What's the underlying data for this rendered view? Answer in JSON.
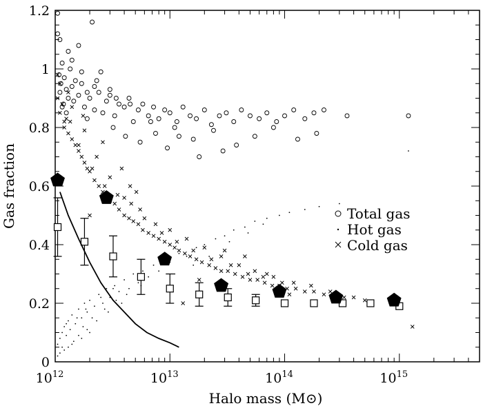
{
  "chart_data": {
    "type": "scatter",
    "xlabel": "Halo mass (M⊙)",
    "ylabel": "Gas fraction",
    "xscale": "log",
    "xlim": [
      1000000000000.0,
      5000000000000000.0
    ],
    "ylim": [
      0,
      1.2
    ],
    "x_ticks": [
      {
        "value": 1000000000000.0,
        "base": "10",
        "exp": "12"
      },
      {
        "value": 10000000000000.0,
        "base": "10",
        "exp": "13"
      },
      {
        "value": 100000000000000.0,
        "base": "10",
        "exp": "14"
      },
      {
        "value": 1000000000000000.0,
        "base": "10",
        "exp": "15"
      }
    ],
    "y_ticks": [
      {
        "value": 0,
        "label": "0"
      },
      {
        "value": 0.2,
        "label": "0.2"
      },
      {
        "value": 0.4,
        "label": "0.4"
      },
      {
        "value": 0.6,
        "label": "0.6"
      },
      {
        "value": 0.8,
        "label": "0.8"
      },
      {
        "value": 1.0,
        "label": "1"
      },
      {
        "value": 1.2,
        "label": "1.2"
      }
    ],
    "legend": {
      "placement": "right-middle",
      "entries": [
        {
          "marker": "circle",
          "label": "Total gas"
        },
        {
          "marker": "dot",
          "label": "Hot gas"
        },
        {
          "marker": "cross",
          "label": "Cold gas"
        }
      ]
    },
    "series": [
      {
        "name": "Total gas",
        "marker": "circle",
        "x": [
          1050000000000.0,
          1080000000000.0,
          1100000000000.0,
          1120000000000.0,
          1150000000000.0,
          1180000000000.0,
          1200000000000.0,
          1250000000000.0,
          1300000000000.0,
          1350000000000.0,
          1400000000000.0,
          1450000000000.0,
          1500000000000.0,
          1600000000000.0,
          1700000000000.0,
          1800000000000.0,
          1900000000000.0,
          2000000000000.0,
          2200000000000.0,
          2400000000000.0,
          2600000000000.0,
          2800000000000.0,
          3000000000000.0,
          3300000000000.0,
          3600000000000.0,
          4000000000000.0,
          4400000000000.0,
          4800000000000.0,
          5300000000000.0,
          5800000000000.0,
          6500000000000.0,
          7200000000000.0,
          8000000000000.0,
          9000000000000.0,
          10000000000000.0,
          11500000000000.0,
          13000000000000.0,
          15000000000000.0,
          17000000000000.0,
          20000000000000.0,
          23000000000000.0,
          27000000000000.0,
          31000000000000.0,
          36000000000000.0,
          42000000000000.0,
          50000000000000.0,
          60000000000000.0,
          70000000000000.0,
          85000000000000.0,
          100000000000000.0,
          120000000000000.0,
          150000000000000.0,
          180000000000000.0,
          220000000000000.0,
          350000000000000.0,
          1200000000000000.0,
          1100000000000.0,
          1300000000000.0,
          1600000000000.0,
          2100000000000.0,
          2500000000000.0,
          3200000000000.0,
          4100000000000.0,
          5500000000000.0,
          7500000000000.0,
          11000000000000.0,
          16000000000000.0,
          24000000000000.0,
          38000000000000.0,
          55000000000000.0,
          80000000000000.0,
          130000000000000.0,
          190000000000000.0,
          29000000000000.0,
          1400000000000.0,
          1700000000000.0,
          2300000000000.0,
          3400000000000.0,
          6800000000000.0,
          12000000000000.0,
          1250000000000.0,
          1900000000000.0,
          1050000000000.0,
          1150000000000.0,
          2200000000000.0,
          3000000000000.0,
          4500000000000.0,
          9500000000000.0,
          18000000000000.0
        ],
        "y": [
          1.19,
          0.98,
          0.92,
          0.95,
          1.02,
          0.88,
          0.97,
          0.93,
          0.9,
          1.0,
          0.94,
          0.89,
          0.96,
          0.91,
          0.95,
          0.87,
          0.92,
          0.9,
          0.86,
          0.92,
          0.85,
          0.89,
          0.93,
          0.84,
          0.88,
          0.87,
          0.9,
          0.82,
          0.86,
          0.88,
          0.84,
          0.87,
          0.83,
          0.86,
          0.85,
          0.82,
          0.87,
          0.84,
          0.83,
          0.86,
          0.81,
          0.84,
          0.85,
          0.82,
          0.86,
          0.84,
          0.83,
          0.85,
          0.82,
          0.84,
          0.86,
          0.83,
          0.85,
          0.86,
          0.84,
          0.84,
          1.1,
          1.06,
          1.08,
          1.16,
          0.99,
          0.8,
          0.77,
          0.75,
          0.78,
          0.8,
          0.76,
          0.79,
          0.74,
          0.77,
          0.8,
          0.76,
          0.78,
          0.72,
          1.03,
          0.99,
          0.96,
          0.9,
          0.82,
          0.77,
          0.85,
          0.83,
          1.12,
          0.87,
          0.94,
          0.91,
          0.88,
          0.73,
          0.7
        ],
        "color": "#000000"
      },
      {
        "name": "Hot gas",
        "marker": "dot",
        "x": [
          1050000000000.0,
          1100000000000.0,
          1150000000000.0,
          1200000000000.0,
          1250000000000.0,
          1300000000000.0,
          1350000000000.0,
          1400000000000.0,
          1500000000000.0,
          1600000000000.0,
          1700000000000.0,
          1800000000000.0,
          1900000000000.0,
          2000000000000.0,
          2200000000000.0,
          2400000000000.0,
          2600000000000.0,
          2800000000000.0,
          3000000000000.0,
          3300000000000.0,
          3600000000000.0,
          4000000000000.0,
          4400000000000.0,
          4800000000000.0,
          5300000000000.0,
          5800000000000.0,
          6500000000000.0,
          7200000000000.0,
          8000000000000.0,
          9000000000000.0,
          10000000000000.0,
          12000000000000.0,
          14000000000000.0,
          17000000000000.0,
          20000000000000.0,
          25000000000000.0,
          30000000000000.0,
          36000000000000.0,
          45000000000000.0,
          55000000000000.0,
          70000000000000.0,
          90000000000000.0,
          110000000000000.0,
          150000000000000.0,
          200000000000000.0,
          300000000000000.0,
          1150000000000.0,
          1450000000000.0,
          1750000000000.0,
          2100000000000.0,
          2700000000000.0,
          3400000000000.0,
          4200000000000.0,
          5600000000000.0,
          1100000000000.0,
          1300000000000.0,
          1600000000000.0,
          1900000000000.0,
          2300000000000.0,
          2900000000000.0,
          3800000000000.0,
          1050000000000.0,
          1200000000000.0,
          1400000000000.0,
          1700000000000.0,
          2000000000000.0,
          11000000000000.0,
          16000000000000.0,
          22000000000000.0,
          33000000000000.0,
          48000000000000.0,
          65000000000000.0,
          1200000000000000.0,
          1250000000000.0,
          1550000000000.0,
          1850000000000.0,
          2500000000000.0,
          3200000000000.0
        ],
        "y": [
          0.06,
          0.08,
          0.1,
          0.12,
          0.09,
          0.14,
          0.11,
          0.16,
          0.13,
          0.18,
          0.15,
          0.2,
          0.17,
          0.21,
          0.19,
          0.23,
          0.2,
          0.25,
          0.22,
          0.26,
          0.24,
          0.28,
          0.25,
          0.3,
          0.27,
          0.31,
          0.29,
          0.33,
          0.31,
          0.35,
          0.34,
          0.37,
          0.36,
          0.39,
          0.4,
          0.42,
          0.43,
          0.45,
          0.46,
          0.48,
          0.49,
          0.5,
          0.51,
          0.52,
          0.53,
          0.54,
          0.05,
          0.07,
          0.12,
          0.15,
          0.18,
          0.21,
          0.23,
          0.26,
          0.03,
          0.05,
          0.09,
          0.11,
          0.14,
          0.17,
          0.2,
          0.02,
          0.04,
          0.06,
          0.08,
          0.1,
          0.3,
          0.33,
          0.36,
          0.41,
          0.44,
          0.47,
          0.72,
          0.13,
          0.15,
          0.18,
          0.22,
          0.25
        ],
        "color": "#000000"
      },
      {
        "name": "Cold gas",
        "marker": "cross",
        "x": [
          1050000000000.0,
          1100000000000.0,
          1150000000000.0,
          1200000000000.0,
          1250000000000.0,
          1300000000000.0,
          1350000000000.0,
          1400000000000.0,
          1500000000000.0,
          1600000000000.0,
          1700000000000.0,
          1800000000000.0,
          1900000000000.0,
          2000000000000.0,
          2200000000000.0,
          2400000000000.0,
          2600000000000.0,
          2800000000000.0,
          3000000000000.0,
          3300000000000.0,
          3600000000000.0,
          4000000000000.0,
          4400000000000.0,
          4800000000000.0,
          5300000000000.0,
          5800000000000.0,
          6500000000000.0,
          7200000000000.0,
          8000000000000.0,
          9000000000000.0,
          10000000000000.0,
          11000000000000.0,
          12000000000000.0,
          13500000000000.0,
          15000000000000.0,
          17000000000000.0,
          19000000000000.0,
          22000000000000.0,
          25000000000000.0,
          28000000000000.0,
          32000000000000.0,
          37000000000000.0,
          43000000000000.0,
          50000000000000.0,
          58000000000000.0,
          67000000000000.0,
          78000000000000.0,
          90000000000000.0,
          105000000000000.0,
          125000000000000.0,
          150000000000000.0,
          180000000000000.0,
          220000000000000.0,
          270000000000000.0,
          330000000000000.0,
          400000000000000.0,
          500000000000000.0,
          1300000000000000.0,
          1100000000000.0,
          1400000000000.0,
          1800000000000.0,
          2300000000000.0,
          3000000000000.0,
          4000000000000.0,
          5500000000000.0,
          7500000000000.0,
          10000000000000.0,
          14000000000000.0,
          20000000000000.0,
          28000000000000.0,
          40000000000000.0,
          55000000000000.0,
          80000000000000.0,
          120000000000000.0,
          170000000000000.0,
          250000000000000.0,
          1200000000000.0,
          1600000000000.0,
          2100000000000.0,
          2700000000000.0,
          3500000000000.0,
          4600000000000.0,
          6000000000000.0,
          8500000000000.0,
          11500000000000.0,
          16000000000000.0,
          23000000000000.0,
          34000000000000.0,
          48000000000000.0,
          65000000000000.0,
          95000000000000.0,
          1050000000000.0,
          1300000000000.0,
          1750000000000.0,
          2600000000000.0,
          3800000000000.0,
          5100000000000.0,
          13000000000000.0,
          18000000000000.0,
          30000000000000.0,
          45000000000000.0,
          70000000000000.0,
          110000000000000.0,
          4500000000000.0,
          2000000000000.0
        ],
        "y": [
          0.9,
          0.85,
          0.88,
          0.8,
          0.83,
          0.78,
          0.82,
          0.76,
          0.74,
          0.72,
          0.7,
          0.68,
          0.66,
          0.65,
          0.62,
          0.6,
          0.58,
          0.57,
          0.55,
          0.54,
          0.52,
          0.5,
          0.49,
          0.48,
          0.47,
          0.45,
          0.44,
          0.43,
          0.42,
          0.41,
          0.4,
          0.39,
          0.38,
          0.37,
          0.36,
          0.35,
          0.34,
          0.33,
          0.32,
          0.31,
          0.31,
          0.3,
          0.29,
          0.28,
          0.28,
          0.27,
          0.26,
          0.26,
          0.25,
          0.25,
          0.24,
          0.24,
          0.23,
          0.23,
          0.22,
          0.22,
          0.21,
          0.12,
          0.95,
          0.87,
          0.79,
          0.7,
          0.63,
          0.56,
          0.52,
          0.47,
          0.45,
          0.42,
          0.39,
          0.36,
          0.33,
          0.31,
          0.29,
          0.27,
          0.26,
          0.24,
          0.82,
          0.74,
          0.66,
          0.6,
          0.57,
          0.54,
          0.49,
          0.44,
          0.41,
          0.38,
          0.35,
          0.33,
          0.3,
          0.29,
          0.27,
          0.98,
          0.92,
          0.84,
          0.75,
          0.66,
          0.58,
          0.2,
          0.28,
          0.38,
          0.36,
          0.3,
          0.23,
          0.6,
          0.5
        ],
        "color": "#000000"
      },
      {
        "name": "",
        "marker": "square-errorbar",
        "x": [
          1050000000000.0,
          1800000000000.0,
          3200000000000.0,
          5600000000000.0,
          10000000000000.0,
          18000000000000.0,
          32000000000000.0,
          56000000000000.0,
          100000000000000.0,
          180000000000000.0,
          320000000000000.0,
          560000000000000.0,
          1000000000000000.0
        ],
        "y": [
          0.46,
          0.41,
          0.36,
          0.29,
          0.25,
          0.23,
          0.22,
          0.21,
          0.2,
          0.2,
          0.2,
          0.2,
          0.19
        ],
        "err": [
          0.1,
          0.08,
          0.07,
          0.06,
          0.05,
          0.04,
          0.03,
          0.02,
          0.0,
          0.0,
          0.0,
          0.0,
          0.0
        ],
        "color": "#000000"
      },
      {
        "name": "",
        "marker": "pentagon",
        "x": [
          1050000000000.0,
          2800000000000.0,
          9000000000000.0,
          28000000000000.0,
          90000000000000.0,
          280000000000000.0,
          900000000000000.0
        ],
        "y": [
          0.62,
          0.56,
          0.35,
          0.26,
          0.24,
          0.22,
          0.21
        ],
        "color": "#000000"
      },
      {
        "name": "",
        "marker": "line",
        "x": [
          1100000000000.0,
          1300000000000.0,
          1600000000000.0,
          2000000000000.0,
          2500000000000.0,
          3200000000000.0,
          4000000000000.0,
          5000000000000.0,
          6300000000000.0,
          8000000000000.0,
          10000000000000.0,
          12000000000000.0
        ],
        "y": [
          0.58,
          0.5,
          0.42,
          0.34,
          0.27,
          0.21,
          0.17,
          0.13,
          0.1,
          0.08,
          0.065,
          0.05
        ],
        "color": "#000000"
      }
    ]
  }
}
